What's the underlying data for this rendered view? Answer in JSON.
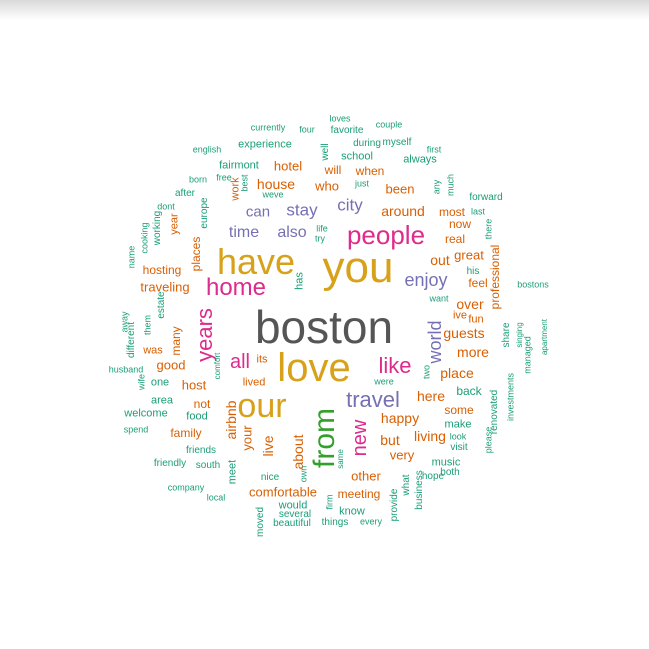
{
  "palette": {
    "gray": "#555555",
    "gold": "#d7a11a",
    "magenta": "#de2b8c",
    "green": "#33a02c",
    "purple": "#7570b3",
    "orange": "#d95f02",
    "teal": "#1b9e77"
  },
  "words": [
    {
      "text": "boston",
      "color": "gray"
    },
    {
      "text": "you",
      "color": "gold"
    },
    {
      "text": "love",
      "color": "gold"
    },
    {
      "text": "have",
      "color": "gold"
    },
    {
      "text": "our",
      "color": "gold"
    },
    {
      "text": "from",
      "color": "green"
    },
    {
      "text": "people",
      "color": "magenta"
    },
    {
      "text": "home",
      "color": "magenta"
    },
    {
      "text": "years",
      "color": "magenta"
    },
    {
      "text": "travel",
      "color": "purple"
    },
    {
      "text": "like",
      "color": "magenta"
    },
    {
      "text": "new",
      "color": "magenta"
    },
    {
      "text": "all",
      "color": "magenta"
    },
    {
      "text": "enjoy",
      "color": "purple"
    },
    {
      "text": "world",
      "color": "purple"
    },
    {
      "text": "city",
      "color": "purple"
    },
    {
      "text": "stay",
      "color": "purple"
    },
    {
      "text": "can",
      "color": "purple"
    },
    {
      "text": "time",
      "color": "purple"
    },
    {
      "text": "also",
      "color": "purple"
    },
    {
      "text": "house",
      "color": "orange"
    },
    {
      "text": "hotel",
      "color": "orange"
    },
    {
      "text": "who",
      "color": "orange"
    },
    {
      "text": "will",
      "color": "orange"
    },
    {
      "text": "when",
      "color": "orange"
    },
    {
      "text": "been",
      "color": "orange"
    },
    {
      "text": "around",
      "color": "orange"
    },
    {
      "text": "out",
      "color": "orange"
    },
    {
      "text": "place",
      "color": "orange"
    },
    {
      "text": "here",
      "color": "orange"
    },
    {
      "text": "happy",
      "color": "orange"
    },
    {
      "text": "living",
      "color": "orange"
    },
    {
      "text": "but",
      "color": "orange"
    },
    {
      "text": "very",
      "color": "orange"
    },
    {
      "text": "other",
      "color": "orange"
    },
    {
      "text": "meeting",
      "color": "orange"
    },
    {
      "text": "comfortable",
      "color": "orange"
    },
    {
      "text": "about",
      "color": "orange"
    },
    {
      "text": "live",
      "color": "orange"
    },
    {
      "text": "your",
      "color": "orange"
    },
    {
      "text": "airbnb",
      "color": "orange"
    },
    {
      "text": "not",
      "color": "orange"
    },
    {
      "text": "host",
      "color": "orange"
    },
    {
      "text": "good",
      "color": "orange"
    },
    {
      "text": "many",
      "color": "orange"
    },
    {
      "text": "traveling",
      "color": "orange"
    },
    {
      "text": "hosting",
      "color": "orange"
    },
    {
      "text": "places",
      "color": "orange"
    },
    {
      "text": "family",
      "color": "orange"
    },
    {
      "text": "guests",
      "color": "orange"
    },
    {
      "text": "more",
      "color": "orange"
    },
    {
      "text": "over",
      "color": "orange"
    },
    {
      "text": "some",
      "color": "orange"
    },
    {
      "text": "real",
      "color": "orange"
    },
    {
      "text": "great",
      "color": "orange"
    },
    {
      "text": "feel",
      "color": "orange"
    },
    {
      "text": "now",
      "color": "orange"
    },
    {
      "text": "most",
      "color": "orange"
    },
    {
      "text": "professional",
      "color": "orange"
    },
    {
      "text": "work",
      "color": "orange"
    },
    {
      "text": "year",
      "color": "orange"
    },
    {
      "text": "was",
      "color": "orange"
    },
    {
      "text": "lived",
      "color": "orange"
    },
    {
      "text": "its",
      "color": "orange"
    },
    {
      "text": "fun",
      "color": "orange"
    },
    {
      "text": "ive",
      "color": "orange"
    },
    {
      "text": "experience",
      "color": "teal"
    },
    {
      "text": "fairmont",
      "color": "teal"
    },
    {
      "text": "english",
      "color": "teal"
    },
    {
      "text": "currently",
      "color": "teal"
    },
    {
      "text": "four",
      "color": "teal"
    },
    {
      "text": "favorite",
      "color": "teal"
    },
    {
      "text": "loves",
      "color": "teal"
    },
    {
      "text": "couple",
      "color": "teal"
    },
    {
      "text": "during",
      "color": "teal"
    },
    {
      "text": "myself",
      "color": "teal"
    },
    {
      "text": "school",
      "color": "teal"
    },
    {
      "text": "first",
      "color": "teal"
    },
    {
      "text": "always",
      "color": "teal"
    },
    {
      "text": "well",
      "color": "teal"
    },
    {
      "text": "free",
      "color": "teal"
    },
    {
      "text": "born",
      "color": "teal"
    },
    {
      "text": "best",
      "color": "teal"
    },
    {
      "text": "weve",
      "color": "teal"
    },
    {
      "text": "just",
      "color": "teal"
    },
    {
      "text": "after",
      "color": "teal"
    },
    {
      "text": "dont",
      "color": "teal"
    },
    {
      "text": "cooking",
      "color": "teal"
    },
    {
      "text": "working",
      "color": "teal"
    },
    {
      "text": "europe",
      "color": "teal"
    },
    {
      "text": "name",
      "color": "teal"
    },
    {
      "text": "any",
      "color": "teal"
    },
    {
      "text": "much",
      "color": "teal"
    },
    {
      "text": "last",
      "color": "teal"
    },
    {
      "text": "forward",
      "color": "teal"
    },
    {
      "text": "there",
      "color": "teal"
    },
    {
      "text": "life",
      "color": "teal"
    },
    {
      "text": "try",
      "color": "teal"
    },
    {
      "text": "has",
      "color": "teal"
    },
    {
      "text": "his",
      "color": "teal"
    },
    {
      "text": "want",
      "color": "teal"
    },
    {
      "text": "bostons",
      "color": "teal"
    },
    {
      "text": "away",
      "color": "teal"
    },
    {
      "text": "them",
      "color": "teal"
    },
    {
      "text": "estate",
      "color": "teal"
    },
    {
      "text": "different",
      "color": "teal"
    },
    {
      "text": "share",
      "color": "teal"
    },
    {
      "text": "singing",
      "color": "teal"
    },
    {
      "text": "apartment",
      "color": "teal"
    },
    {
      "text": "managed",
      "color": "teal"
    },
    {
      "text": "husband",
      "color": "teal"
    },
    {
      "text": "wife",
      "color": "teal"
    },
    {
      "text": "one",
      "color": "teal"
    },
    {
      "text": "area",
      "color": "teal"
    },
    {
      "text": "welcome",
      "color": "teal"
    },
    {
      "text": "spend",
      "color": "teal"
    },
    {
      "text": "food",
      "color": "teal"
    },
    {
      "text": "friends",
      "color": "teal"
    },
    {
      "text": "friendly",
      "color": "teal"
    },
    {
      "text": "south",
      "color": "teal"
    },
    {
      "text": "company",
      "color": "teal"
    },
    {
      "text": "local",
      "color": "teal"
    },
    {
      "text": "meet",
      "color": "teal"
    },
    {
      "text": "comfort",
      "color": "teal"
    },
    {
      "text": "were",
      "color": "teal"
    },
    {
      "text": "two",
      "color": "teal"
    },
    {
      "text": "back",
      "color": "teal"
    },
    {
      "text": "make",
      "color": "teal"
    },
    {
      "text": "look",
      "color": "teal"
    },
    {
      "text": "visit",
      "color": "teal"
    },
    {
      "text": "renovated",
      "color": "teal"
    },
    {
      "text": "investments",
      "color": "teal"
    },
    {
      "text": "please",
      "color": "teal"
    },
    {
      "text": "music",
      "color": "teal"
    },
    {
      "text": "hope",
      "color": "teal"
    },
    {
      "text": "both",
      "color": "teal"
    },
    {
      "text": "business",
      "color": "teal"
    },
    {
      "text": "what",
      "color": "teal"
    },
    {
      "text": "provide",
      "color": "teal"
    },
    {
      "text": "same",
      "color": "teal"
    },
    {
      "text": "own",
      "color": "teal"
    },
    {
      "text": "nice",
      "color": "teal"
    },
    {
      "text": "would",
      "color": "teal"
    },
    {
      "text": "several",
      "color": "teal"
    },
    {
      "text": "beautiful",
      "color": "teal"
    },
    {
      "text": "moved",
      "color": "teal"
    },
    {
      "text": "firm",
      "color": "teal"
    },
    {
      "text": "know",
      "color": "teal"
    },
    {
      "text": "things",
      "color": "teal"
    },
    {
      "text": "every",
      "color": "teal"
    }
  ]
}
